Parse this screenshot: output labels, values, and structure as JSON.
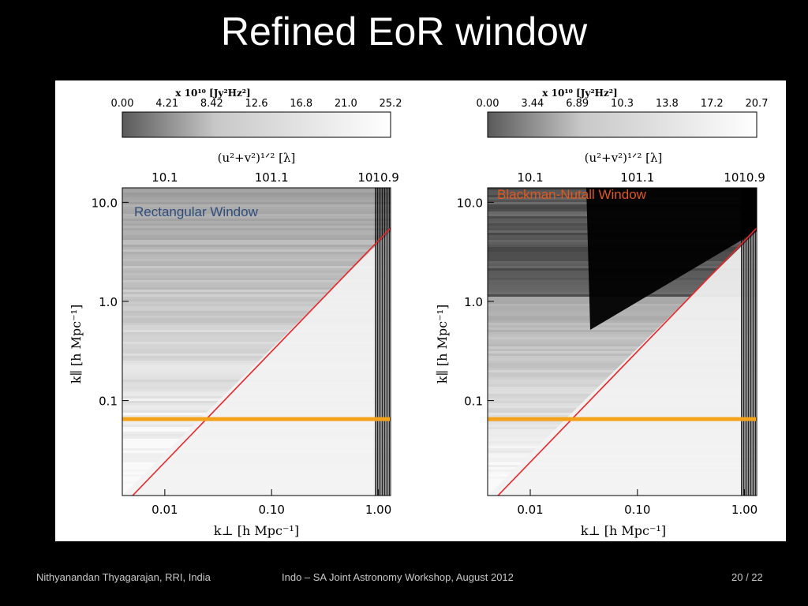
{
  "slide": {
    "title": "Refined EoR window",
    "footer_left": "Nithyanandan Thyagarajan, RRI, India",
    "footer_center": "Indo – SA Joint Astronomy Workshop, August 2012",
    "footer_page": "20 / 22"
  },
  "colors": {
    "background": "#000000",
    "wedge_line": "#e8262a",
    "horizon_band": "#f5a21b",
    "left_label": "#2f4d7c",
    "right_label": "#e2571e"
  },
  "chart_data": [
    {
      "type": "heatmap",
      "title": "Rectangular Window",
      "colorbar": {
        "unit_label": "x 10¹⁰ [Jy²Hz²]",
        "ticks": [
          "0.00",
          "4.21",
          "8.42",
          "12.6",
          "16.8",
          "21.0",
          "25.2"
        ],
        "range": [
          0.0,
          25.2
        ]
      },
      "top_axis": {
        "label": "(u²+v²)¹ᐟ² [λ]",
        "ticks": [
          "10.1",
          "101.1",
          "1010.9"
        ]
      },
      "x_axis": {
        "label": "k⊥ [h Mpc⁻¹]",
        "scale": "log",
        "ticks": [
          "0.01",
          "0.10",
          "1.00"
        ],
        "range": [
          0.004,
          1.3
        ]
      },
      "y_axis": {
        "label": "k∥ [h Mpc⁻¹]",
        "scale": "log",
        "ticks": [
          "10.0",
          "1.0",
          "0.1"
        ],
        "range": [
          0.011,
          14
        ]
      },
      "overlays": [
        "wedge limit line (red)",
        "minimum k∥ band (orange)"
      ]
    },
    {
      "type": "heatmap",
      "title": "Blackman-Nutall Window",
      "colorbar": {
        "unit_label": "x 10¹⁰ [Jy²Hz²]",
        "ticks": [
          "0.00",
          "3.44",
          "6.89",
          "10.3",
          "13.8",
          "17.2",
          "20.7"
        ],
        "range": [
          0.0,
          20.7
        ]
      },
      "top_axis": {
        "label": "(u²+v²)¹ᐟ² [λ]",
        "ticks": [
          "10.1",
          "101.1",
          "1010.9"
        ]
      },
      "x_axis": {
        "label": "k⊥ [h Mpc⁻¹]",
        "scale": "log",
        "ticks": [
          "0.01",
          "0.10",
          "1.00"
        ],
        "range": [
          0.004,
          1.3
        ]
      },
      "y_axis": {
        "label": "k∥ [h Mpc⁻¹]",
        "scale": "log",
        "ticks": [
          "10.0",
          "1.0",
          "0.1"
        ],
        "range": [
          0.011,
          14
        ]
      },
      "overlays": [
        "wedge limit line (red)",
        "minimum k∥ band (orange)"
      ]
    }
  ]
}
